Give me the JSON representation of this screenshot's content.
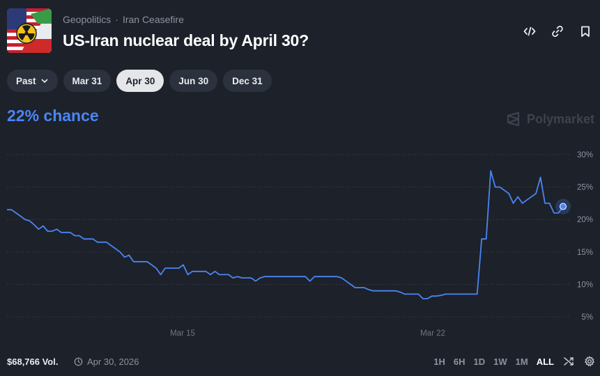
{
  "header": {
    "breadcrumbs": [
      "Geopolitics",
      "Iran Ceasefire"
    ],
    "breadcrumb_separator": "·",
    "title": "US-Iran nuclear deal by April 30?",
    "icons": [
      "embed-icon",
      "link-icon",
      "bookmark-icon"
    ]
  },
  "pills": {
    "past_label": "Past",
    "dates": [
      "Mar 31",
      "Apr 30",
      "Jun 30",
      "Dec 31"
    ],
    "active": "Apr 30"
  },
  "chance_label": "22% chance",
  "watermark": "Polymarket",
  "footer": {
    "volume": "$68,766 Vol.",
    "end_date": "Apr 30, 2026",
    "ranges": [
      "1H",
      "6H",
      "1D",
      "1W",
      "1M",
      "ALL"
    ],
    "active_range": "ALL"
  },
  "colors": {
    "background": "#1d212a",
    "line": "#4a86f3",
    "grid": "#3a3f49",
    "pill_active": "#e4e6ea"
  },
  "chart_data": {
    "type": "line",
    "x_tick_labels": [
      "Mar 15",
      "Mar 22"
    ],
    "y_tick_labels": [
      "30%",
      "25%",
      "20%",
      "15%",
      "10%",
      "5%"
    ],
    "ylim": [
      0,
      30
    ],
    "grid": true,
    "series": [
      {
        "values": [
          21.5,
          21.5,
          21,
          20.5,
          20,
          19.8,
          19.2,
          18.5,
          19,
          18.2,
          18.2,
          18.5,
          18,
          18,
          18,
          17.5,
          17.5,
          17,
          17,
          17,
          16.5,
          16.5,
          16.5,
          16,
          15.5,
          15,
          14.2,
          14.5,
          13.5,
          13.5,
          13.5,
          13.5,
          13,
          12.5,
          11.5,
          12.5,
          12.5,
          12.5,
          12.5,
          13,
          11.5,
          12,
          12,
          12,
          12,
          11.5,
          12,
          11.5,
          11.5,
          11.5,
          11,
          11.2,
          11,
          11,
          11,
          10.5,
          11,
          11.2,
          11.2,
          11.2,
          11.2,
          11.2,
          11.2,
          11.2,
          11.2,
          11.2,
          11.2,
          10.5,
          11.2,
          11.2,
          11.2,
          11.2,
          11.2,
          11.2,
          11,
          10.5,
          10,
          9.5,
          9.5,
          9.5,
          9.2,
          9,
          9,
          9,
          9,
          9,
          9,
          8.8,
          8.5,
          8.5,
          8.5,
          8.5,
          7.8,
          7.8,
          8.2,
          8.2,
          8.3,
          8.5,
          8.5,
          8.5,
          8.5,
          8.5,
          8.5,
          8.5,
          8.5,
          17,
          17,
          27.5,
          25,
          25,
          24.5,
          24,
          22.5,
          23.5,
          22.5,
          23,
          23.5,
          24,
          26.5,
          22.5,
          22.5,
          21,
          21,
          22
        ]
      }
    ],
    "current_value": 22
  }
}
